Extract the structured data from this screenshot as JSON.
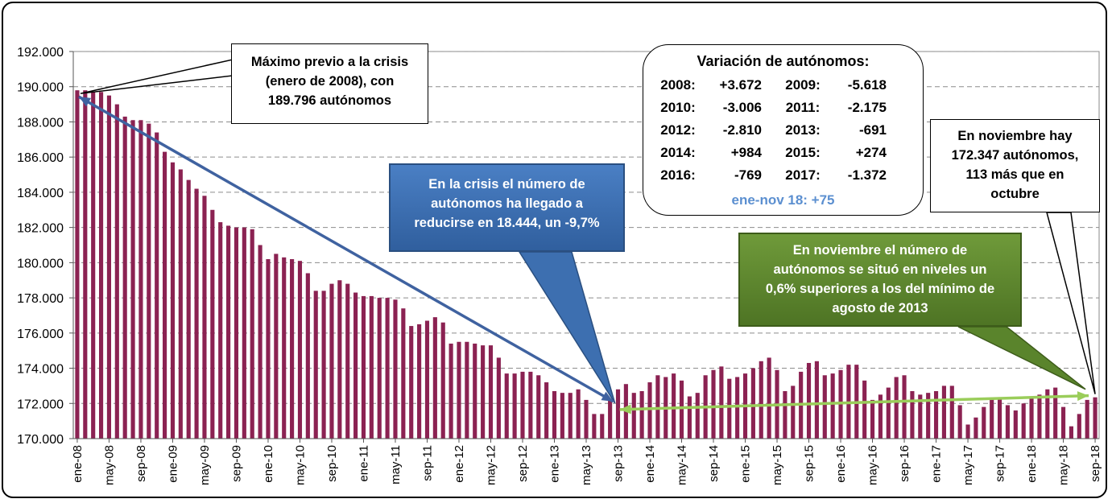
{
  "chart_data": {
    "type": "bar",
    "title": "",
    "xlabel": "",
    "ylabel": "",
    "ylim": [
      170000,
      192000
    ],
    "yticks": [
      170000,
      172000,
      174000,
      176000,
      178000,
      180000,
      182000,
      184000,
      186000,
      188000,
      190000,
      192000
    ],
    "ytick_labels": [
      "170.000",
      "172.000",
      "174.000",
      "176.000",
      "178.000",
      "180.000",
      "182.000",
      "184.000",
      "186.000",
      "188.000",
      "190.000",
      "192.000"
    ],
    "xtick_labels": [
      "ene-08",
      "may-08",
      "sep-08",
      "ene-09",
      "may-09",
      "sep-09",
      "ene-10",
      "may-10",
      "sep-10",
      "ene-11",
      "may-11",
      "sep-11",
      "ene-12",
      "may-12",
      "sep-12",
      "ene-13",
      "may-13",
      "sep-13",
      "ene-14",
      "may-14",
      "sep-14",
      "ene-15",
      "may-15",
      "sep-15",
      "ene-16",
      "may-16",
      "sep-16",
      "ene-17",
      "may-17",
      "sep-17",
      "ene-18",
      "may-18",
      "sep-18"
    ],
    "bar_color": "#8b2252",
    "series": [
      {
        "name": "Autónomos",
        "values": [
          189796,
          189796,
          189700,
          189700,
          189500,
          189000,
          188300,
          188100,
          188100,
          187900,
          187400,
          186300,
          185700,
          185300,
          184700,
          184200,
          183800,
          183000,
          182300,
          182100,
          182000,
          182000,
          181900,
          181000,
          180200,
          180500,
          180300,
          180200,
          180100,
          179400,
          178400,
          178400,
          178800,
          179000,
          178800,
          178300,
          178100,
          178100,
          178000,
          178000,
          177900,
          177400,
          176400,
          176500,
          176700,
          176900,
          176600,
          175400,
          175500,
          175500,
          175400,
          175300,
          175300,
          174600,
          173700,
          173700,
          173800,
          173800,
          173600,
          173200,
          172700,
          172600,
          172600,
          172800,
          172200,
          171400,
          171400,
          172200,
          172800,
          173100,
          172600,
          172700,
          173200,
          173600,
          173500,
          173700,
          173300,
          172400,
          172600,
          173600,
          173900,
          174100,
          173400,
          173500,
          173700,
          174000,
          174400,
          174600,
          173900,
          172700,
          173000,
          173800,
          174300,
          174400,
          173600,
          173700,
          173900,
          174200,
          174200,
          173300,
          172200,
          172500,
          172900,
          173500,
          173600,
          172700,
          172500,
          172600,
          172700,
          173000,
          173000,
          171900,
          170800,
          171200,
          171800,
          172300,
          172300,
          171900,
          171600,
          172000,
          172300,
          172500,
          172800,
          172900,
          171800,
          170700,
          171400,
          172200,
          172347
        ]
      }
    ]
  },
  "annotations": {
    "max_box": [
      "Máximo previo a la crisis",
      "(enero de 2008), con",
      "189.796  autónomos"
    ],
    "crisis_box": [
      "En la crisis el número de",
      "autónomos ha llegado a",
      "reducirse en 18.444,  un -9,7%"
    ],
    "variation": {
      "title": "Variación de autónomos:",
      "rows": [
        {
          "y1": "2008:",
          "v1": "+3.672",
          "y2": "2009:",
          "v2": "-5.618"
        },
        {
          "y1": "2010:",
          "v1": "-3.006",
          "y2": "2011:",
          "v2": "-2.175"
        },
        {
          "y1": "2012:",
          "v1": "-2.810",
          "y2": "2013:",
          "v2": "-691"
        },
        {
          "y1": "2014:",
          "v1": "+984",
          "y2": "2015:",
          "v2": "+274"
        },
        {
          "y1": "2016:",
          "v1": "-769",
          "y2": "2017:",
          "v2": "-1.372"
        }
      ],
      "last": "ene-nov 18:   +75",
      "last_color": "#5b8fd0"
    },
    "nov_box": [
      "En noviembre hay",
      "172.347  autónomos,",
      "113 más que en",
      "octubre"
    ],
    "green_box": [
      "En noviembre el número de",
      "autónomos se situó en niveles un",
      "0,6% superiores a los del mínimo de",
      "agosto de 2013"
    ]
  }
}
